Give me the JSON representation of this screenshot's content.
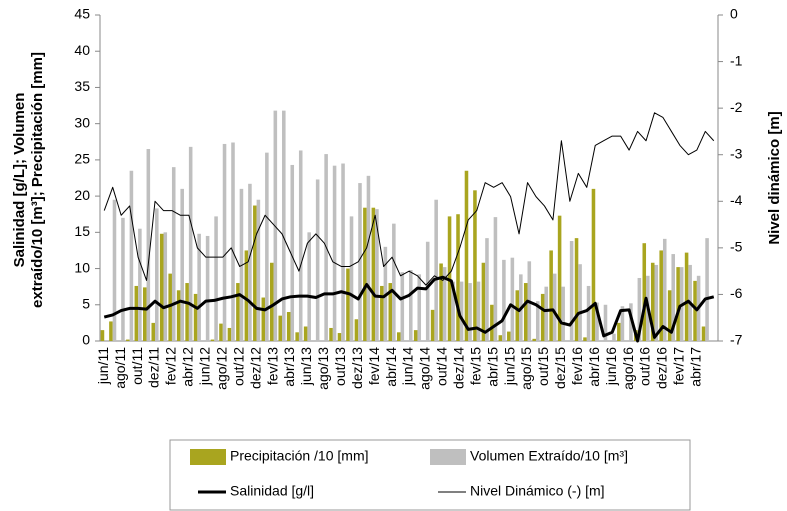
{
  "chart_data": {
    "type": "bar-line",
    "y_title_lines": [
      "Salinidad [g/L]; Volumen",
      "extraído/10 [m³]; Precipitación [mm]"
    ],
    "y2_title": "Nivel dinámico [m]",
    "categories": [
      "jun/11",
      null,
      "ago/11",
      null,
      "out/11",
      null,
      "dez/11",
      null,
      "fev/12",
      null,
      "abr/12",
      null,
      "jun/12",
      null,
      "ago/12",
      null,
      "out/12",
      null,
      "dez/12",
      null,
      "fev/13",
      null,
      "abr/13",
      null,
      "jun/13",
      null,
      "ago/13",
      null,
      "out/13",
      null,
      "dez/13",
      null,
      "fev/14",
      null,
      "abr/14",
      null,
      "jun/14",
      null,
      "ago/14",
      null,
      "out/14",
      null,
      "dez/14",
      null,
      "fev/15",
      null,
      "abr/15",
      null,
      "jun/15",
      null,
      "ago/15",
      null,
      "out/15",
      null,
      "dez/15",
      null,
      "fev/16",
      null,
      "abr/16",
      null,
      "jun/16",
      null,
      "ago/16",
      null,
      "out/16",
      null,
      "dez/16",
      null,
      "fev/17",
      null,
      "abr/17",
      null,
      null
    ],
    "series": [
      {
        "name": "Precipitación /10 [mm]",
        "type": "bar",
        "color": "#a9a51f",
        "values": [
          1.5,
          2.7,
          0,
          0.2,
          7.6,
          7.4,
          2.5,
          14.8,
          9.3,
          7,
          8,
          6.5,
          0,
          0.2,
          2.4,
          1.8,
          8,
          12.5,
          18.7,
          6,
          10.8,
          3.5,
          4,
          1.2,
          2,
          0,
          0,
          1.8,
          1.1,
          10,
          3,
          18.4,
          18.4,
          7.6,
          8,
          1.2,
          0,
          1.5,
          0,
          4.3,
          10.7,
          17.2,
          17.5,
          23.5,
          20.8,
          10.8,
          5,
          0.8,
          1.3,
          7,
          8,
          0.3,
          6.5,
          12.5,
          17.3,
          0,
          14.2,
          0.5,
          21,
          0,
          0,
          2.5,
          0,
          1.5,
          13.5,
          10.8,
          12.5,
          7,
          10.2,
          12.2,
          8.3,
          2,
          0
        ]
      },
      {
        "name": "Volumen Extraído/10 [m³]",
        "type": "bar",
        "color": "#bfbfbf",
        "values": [
          0,
          19.5,
          17,
          23.5,
          15.5,
          26.5,
          18.3,
          15,
          24,
          21,
          26.8,
          14.8,
          14.5,
          17.2,
          27.2,
          27.4,
          21,
          21.7,
          19.5,
          26,
          31.8,
          31.8,
          24.3,
          26.3,
          15,
          22.3,
          25.8,
          24.2,
          24.5,
          17.2,
          21.8,
          22.8,
          18.2,
          13,
          16.2,
          9.5,
          9.8,
          9.2,
          13.7,
          19.5,
          10.2,
          8.2,
          8.2,
          8,
          8.2,
          14.2,
          17.1,
          11.2,
          11.5,
          9.2,
          11,
          5.5,
          7.5,
          9.3,
          7.5,
          13.8,
          10.6,
          7.6,
          5.3,
          5,
          1,
          4.8,
          5.2,
          8.7,
          9,
          10.5,
          14.1,
          12,
          10.2,
          10.5,
          9,
          14.2,
          0
        ]
      },
      {
        "name": "Salinidad [g/l]",
        "type": "line",
        "color": "#000000",
        "width": 3,
        "values": [
          3.3,
          3.6,
          4.2,
          4.5,
          4.5,
          4.4,
          5.5,
          4.6,
          5,
          5.5,
          5.2,
          4.5,
          5.5,
          5.6,
          5.9,
          6.1,
          6.4,
          5.6,
          4.5,
          4.3,
          5,
          5.8,
          6.1,
          6.2,
          6.2,
          6,
          6.5,
          6.5,
          6.8,
          6.5,
          5.8,
          7.8,
          6.2,
          6.1,
          7,
          5.8,
          6.3,
          7.3,
          7.2,
          8.5,
          8.8,
          8.3,
          3.5,
          1.6,
          1.8,
          1.2,
          2,
          2.8,
          5,
          4.2,
          5.5,
          5,
          4.2,
          4.3,
          2.5,
          2.2,
          3.8,
          4.2,
          5.2,
          0.7,
          1.2,
          4.2,
          4.3,
          0,
          5.9,
          0.5,
          2,
          1.2,
          4.8,
          5.5,
          4.3,
          5.8,
          6.1
        ]
      },
      {
        "name": "Nivel Dinámico (-) [m]",
        "type": "line",
        "axis": "y2",
        "color": "#000000",
        "width": 1,
        "values": [
          -4.2,
          -3.7,
          -4.3,
          -4.1,
          -5.2,
          -5.7,
          -4,
          -4.2,
          -4.2,
          -4.3,
          -4.3,
          -5,
          -5.2,
          -5.2,
          -5.2,
          -5,
          -5.4,
          -5.3,
          -4.7,
          -4.3,
          -4.5,
          -4.7,
          -5.1,
          -5.5,
          -4.9,
          -4.7,
          -4.9,
          -5.3,
          -5.4,
          -5.4,
          -5.3,
          -5,
          -4.3,
          -5.4,
          -5.2,
          -5.6,
          -5.5,
          -5.6,
          -5.8,
          -5.6,
          -5.7,
          -5.5,
          -5,
          -4.4,
          -4.2,
          -3.6,
          -3.7,
          -3.6,
          -3.9,
          -4.7,
          -3.6,
          -3.9,
          -4.1,
          -4.4,
          -2.7,
          -4,
          -3.4,
          -3.7,
          -2.8,
          -2.7,
          -2.6,
          -2.6,
          -2.9,
          -2.5,
          -2.7,
          -2.1,
          -2.2,
          -2.5,
          -2.8,
          -3,
          -2.9,
          -2.5,
          -2.7
        ]
      }
    ],
    "ylim": [
      0,
      45
    ],
    "yticks": [
      0,
      5,
      10,
      15,
      20,
      25,
      30,
      35,
      40,
      45
    ],
    "y2lim": [
      -7,
      0
    ],
    "y2ticks": [
      0,
      -1,
      -2,
      -3,
      -4,
      -5,
      -6,
      -7
    ]
  }
}
